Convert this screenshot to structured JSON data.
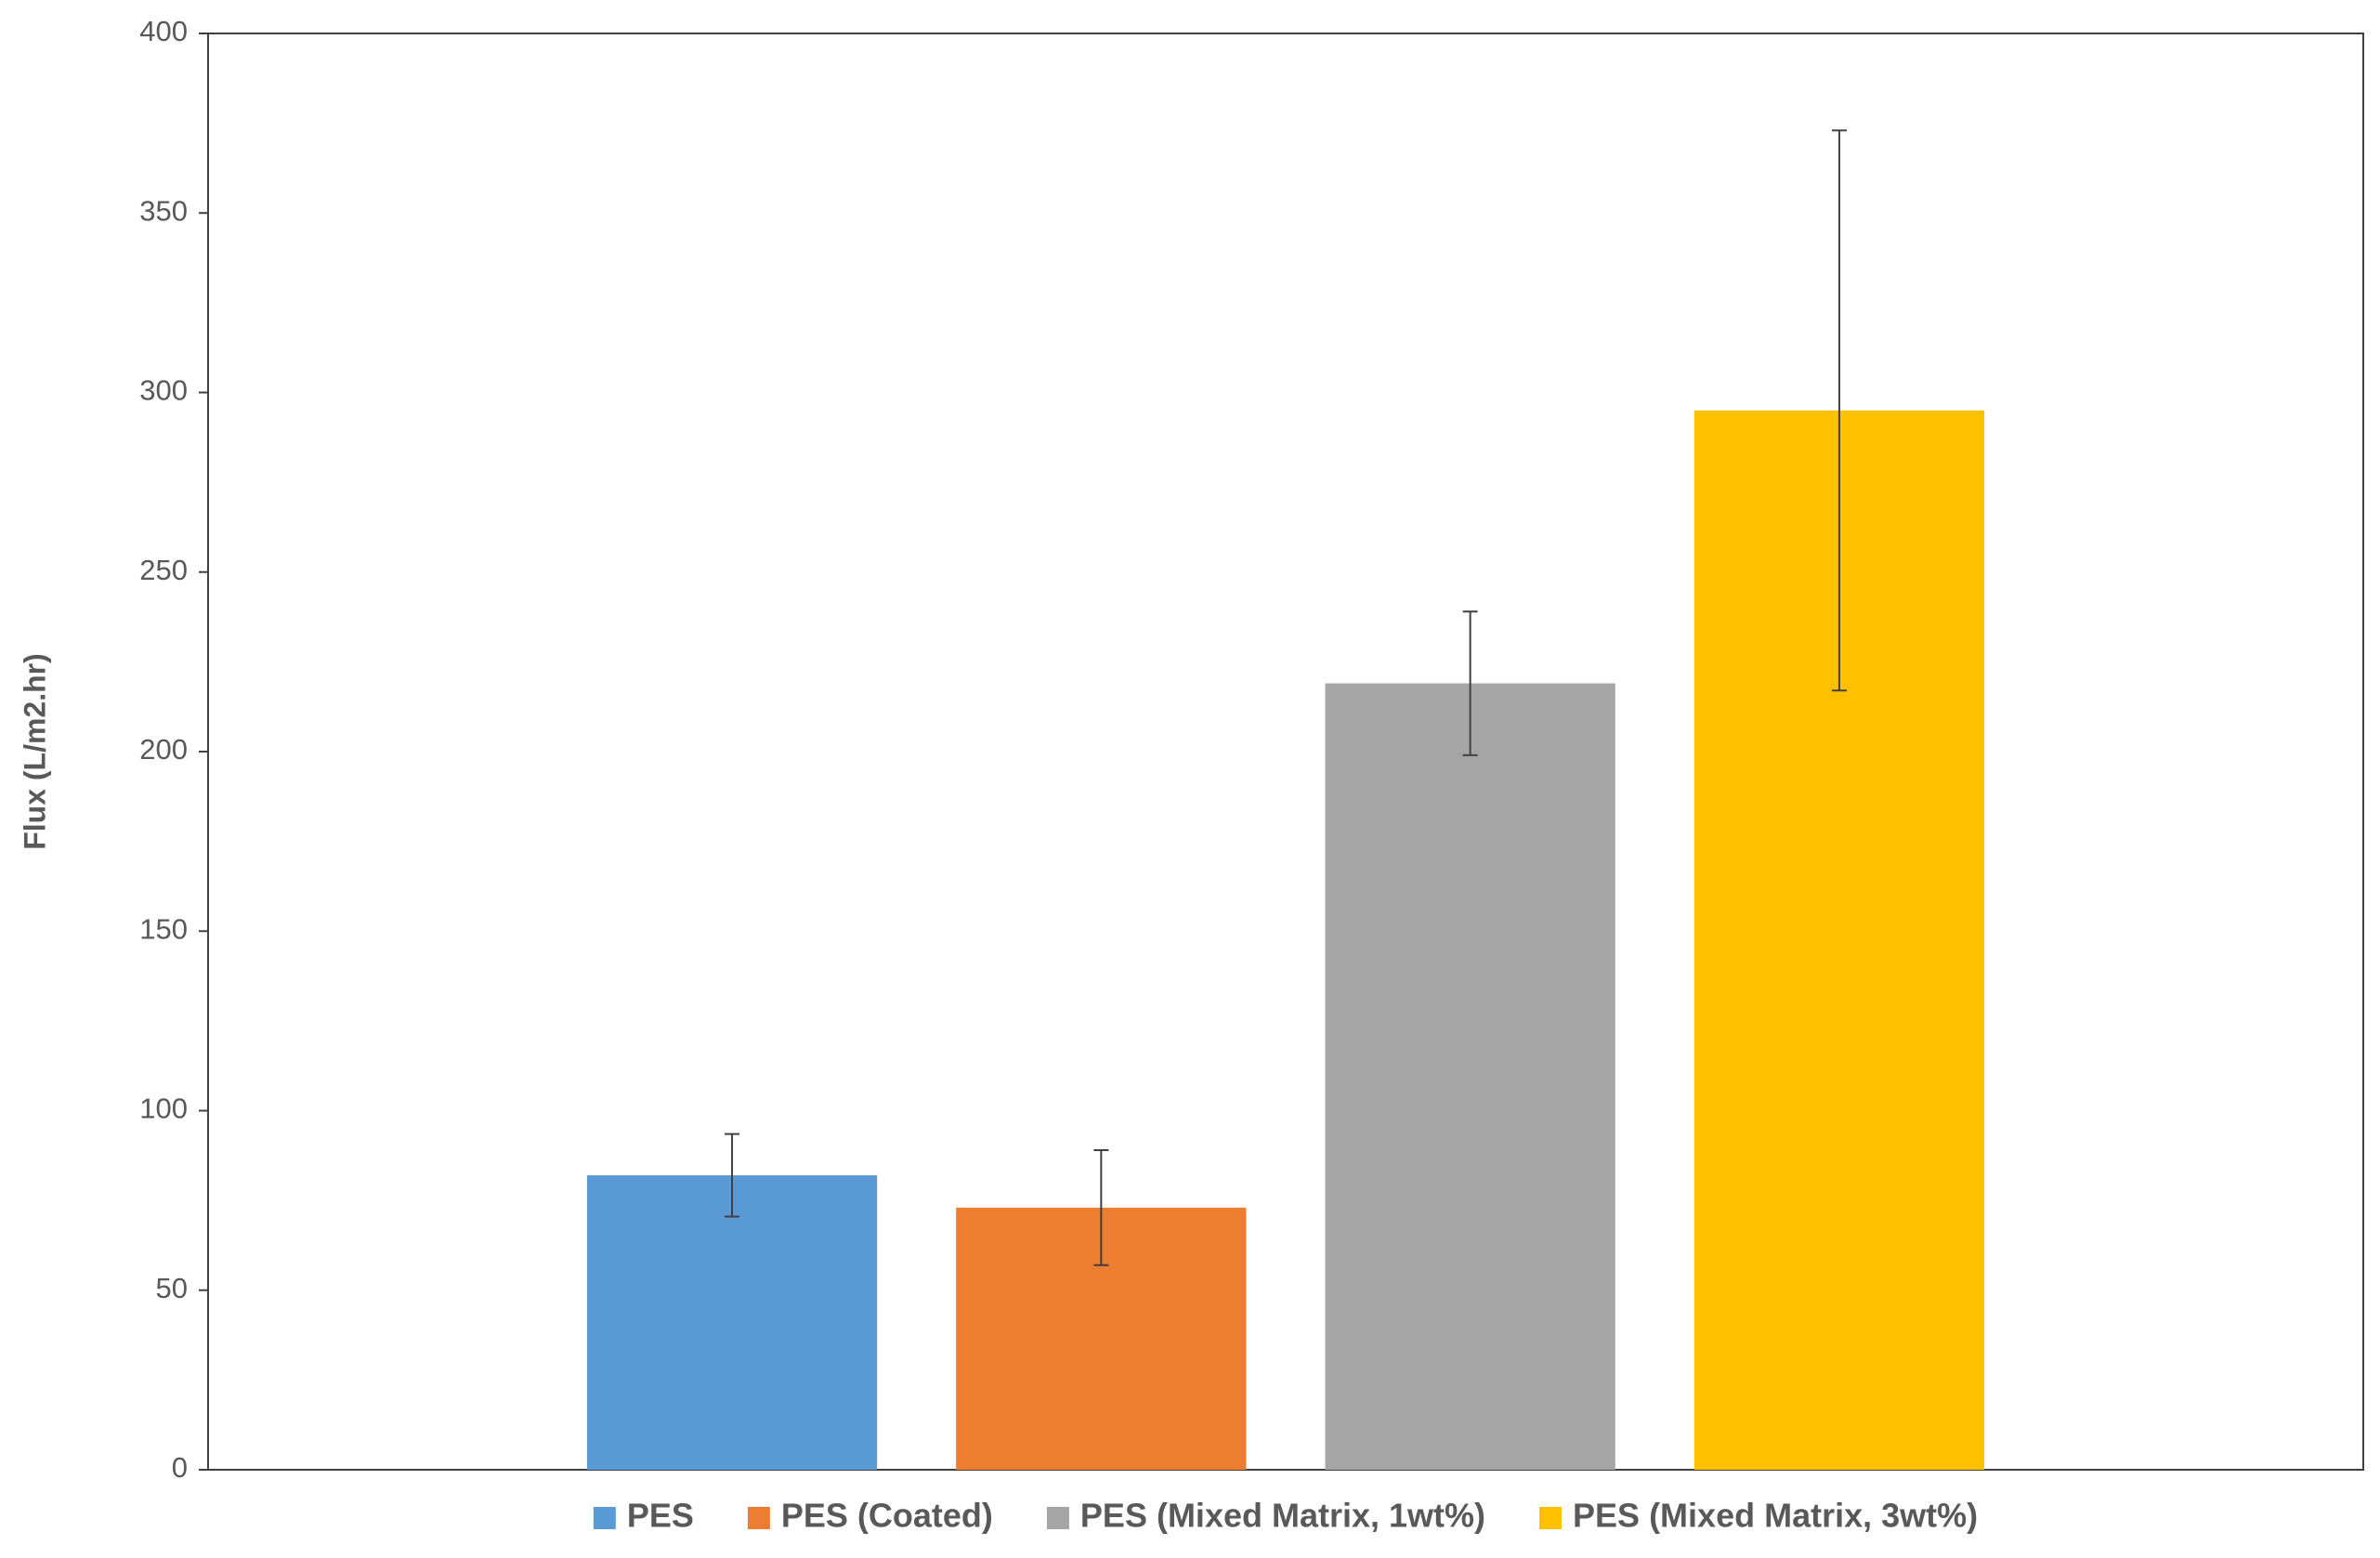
{
  "chart_data": {
    "type": "bar",
    "y_label": "Flux (L/m2.hr)",
    "categories": [
      null
    ],
    "series": [
      {
        "name": "PES",
        "color": "#5b9bd5",
        "values": [
          82
        ],
        "errors": [
          11.5
        ]
      },
      {
        "name": "PES (Coated)",
        "color": "#ed7d31",
        "values": [
          73
        ],
        "errors": [
          16
        ]
      },
      {
        "name": "PES (Mixed Matrix, 1wt%)",
        "color": "#a5a5a5",
        "values": [
          219
        ],
        "errors": [
          20
        ]
      },
      {
        "name": "PES (Mixed Matrix, 3wt%)",
        "color": "#ffc000",
        "values": [
          295
        ],
        "errors": [
          78
        ]
      }
    ],
    "ylim": [
      0,
      400
    ],
    "yticks": [
      0,
      50,
      100,
      150,
      200,
      250,
      300,
      350,
      400
    ],
    "grid": false,
    "legend": "bottom"
  }
}
